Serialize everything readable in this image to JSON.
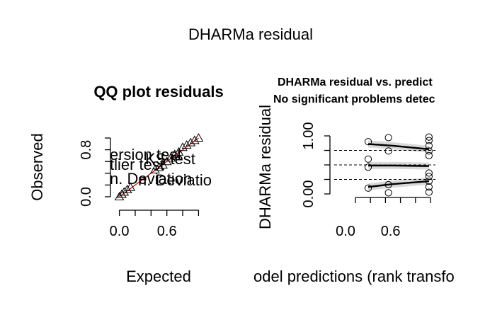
{
  "figure": {
    "title": "DHARMa residual"
  },
  "chart_data": [
    {
      "type": "scatter",
      "title": "QQ plot residuals",
      "xlabel": "Expected",
      "ylabel": "Observed",
      "xlim": [
        -0.05,
        1.05
      ],
      "ylim": [
        0.0,
        1.0
      ],
      "x_ticks": [
        "0.0",
        "0.6"
      ],
      "y_ticks": [
        "0.0",
        "0.8"
      ],
      "marker": "triangle",
      "overlay_text": [
        "ersion test",
        "KS test",
        "tlier test",
        "n. Deviation",
        "n. Deviatio"
      ],
      "points": [
        [
          0.0,
          0.0
        ],
        [
          0.03,
          0.04
        ],
        [
          0.06,
          0.08
        ],
        [
          0.1,
          0.12
        ],
        [
          0.14,
          0.16
        ],
        [
          0.45,
          0.46
        ],
        [
          0.5,
          0.5
        ],
        [
          0.55,
          0.54
        ],
        [
          0.6,
          0.6
        ],
        [
          0.65,
          0.66
        ],
        [
          0.7,
          0.72
        ],
        [
          0.75,
          0.76
        ],
        [
          0.8,
          0.84
        ],
        [
          0.85,
          0.88
        ],
        [
          0.9,
          0.92
        ],
        [
          0.95,
          0.96
        ],
        [
          1.0,
          1.0
        ]
      ]
    },
    {
      "type": "scatter",
      "title": "DHARMa residual vs. predict",
      "subtitle": "No significant problems detec",
      "xlabel": "odel predictions (rank transfo",
      "ylabel": "DHARMa residual",
      "xlim": [
        0.0,
        1.0
      ],
      "ylim": [
        0.0,
        1.0
      ],
      "x_ticks": [
        "0.0",
        "0.6"
      ],
      "y_ticks": [
        "0.00",
        "1.00"
      ],
      "reference_lines": [
        0.25,
        0.5,
        0.75
      ],
      "marker": "circle",
      "points": [
        [
          0.17,
          0.1
        ],
        [
          0.17,
          0.46
        ],
        [
          0.17,
          0.6
        ],
        [
          0.17,
          0.9
        ],
        [
          0.44,
          0.16
        ],
        [
          0.44,
          0.02
        ],
        [
          0.44,
          0.74
        ],
        [
          0.44,
          0.97
        ],
        [
          0.98,
          0.03
        ],
        [
          0.98,
          0.12
        ],
        [
          0.98,
          0.22
        ],
        [
          0.98,
          0.3
        ],
        [
          0.98,
          0.36
        ],
        [
          0.98,
          0.66
        ],
        [
          0.98,
          0.74
        ],
        [
          0.98,
          0.83
        ],
        [
          0.98,
          0.92
        ],
        [
          0.98,
          0.98
        ]
      ],
      "quantile_curves": [
        [
          [
            0.17,
            0.86
          ],
          [
            0.5,
            0.83
          ],
          [
            0.98,
            0.77
          ]
        ],
        [
          [
            0.17,
            0.49
          ],
          [
            0.5,
            0.49
          ],
          [
            0.98,
            0.48
          ]
        ],
        [
          [
            0.17,
            0.12
          ],
          [
            0.5,
            0.17
          ],
          [
            0.98,
            0.22
          ]
        ]
      ]
    }
  ]
}
